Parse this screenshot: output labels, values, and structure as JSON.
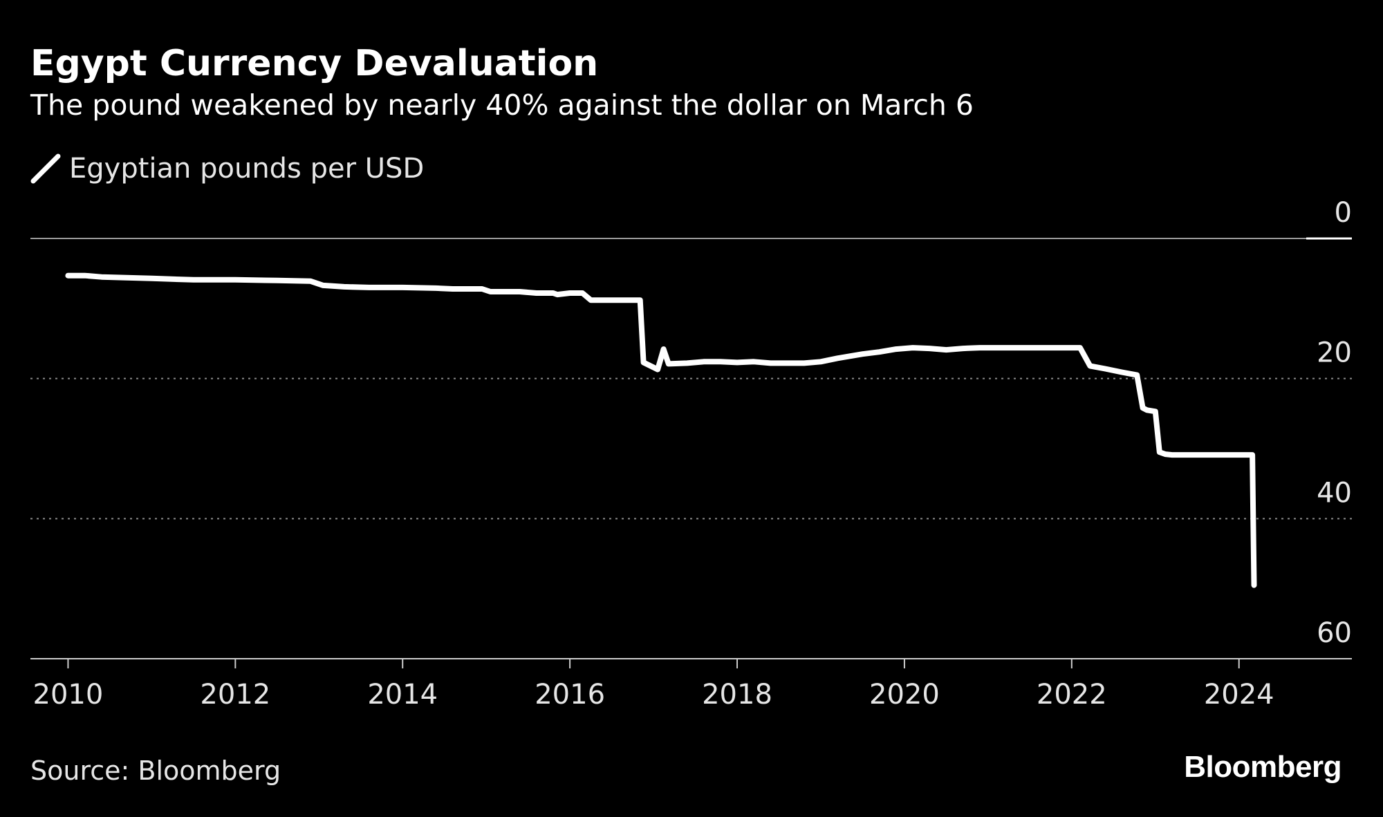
{
  "header": {
    "title": "Egypt Currency Devaluation",
    "subtitle": "The pound weakened by nearly 40% against the dollar on March 6"
  },
  "footer": {
    "source": "Source: Bloomberg",
    "brand": "Bloomberg"
  },
  "colors": {
    "background": "#000000",
    "line": "#ffffff",
    "grid": "#9a9a9a",
    "text": "#e6e6e6"
  },
  "chart_data": {
    "type": "line",
    "title": "Egypt Currency Devaluation",
    "subtitle": "The pound weakened by nearly 40% against the dollar on March 6",
    "xlabel": "",
    "ylabel": "",
    "x_ticks": [
      "2010",
      "2012",
      "2014",
      "2016",
      "2018",
      "2020",
      "2022",
      "2024"
    ],
    "y_ticks": [
      "0",
      "20",
      "40",
      "60"
    ],
    "xlim": [
      2009.55,
      2025.35
    ],
    "ylim": [
      0,
      60
    ],
    "y_axis_inverted": true,
    "y_axis_side": "right",
    "grid": "horizontal dotted at 20 and 40",
    "legend": "top-left",
    "series": [
      {
        "name": "Egyptian pounds per USD",
        "x": [
          2010.0,
          2010.2,
          2010.4,
          2011.0,
          2011.5,
          2012.0,
          2012.5,
          2012.9,
          2013.05,
          2013.3,
          2013.6,
          2014.0,
          2014.4,
          2014.6,
          2014.95,
          2015.05,
          2015.4,
          2015.6,
          2015.8,
          2015.85,
          2016.0,
          2016.15,
          2016.25,
          2016.5,
          2016.8,
          2016.84,
          2016.88,
          2017.05,
          2017.12,
          2017.18,
          2017.4,
          2017.6,
          2017.8,
          2018.0,
          2018.2,
          2018.4,
          2018.6,
          2018.8,
          2019.0,
          2019.2,
          2019.5,
          2019.7,
          2019.9,
          2020.1,
          2020.3,
          2020.5,
          2020.7,
          2020.9,
          2021.2,
          2021.5,
          2021.8,
          2022.1,
          2022.22,
          2022.4,
          2022.6,
          2022.78,
          2022.85,
          2022.9,
          2023.0,
          2023.05,
          2023.12,
          2023.2,
          2023.4,
          2023.6,
          2023.8,
          2024.0,
          2024.1,
          2024.16,
          2024.18
        ],
        "values": [
          5.3,
          5.3,
          5.5,
          5.7,
          5.9,
          5.9,
          6.0,
          6.1,
          6.7,
          6.9,
          7.0,
          7.0,
          7.1,
          7.2,
          7.2,
          7.6,
          7.6,
          7.8,
          7.8,
          8.0,
          7.8,
          7.8,
          8.8,
          8.8,
          8.8,
          8.8,
          17.7,
          18.7,
          15.8,
          17.9,
          17.8,
          17.6,
          17.6,
          17.7,
          17.6,
          17.8,
          17.8,
          17.8,
          17.6,
          17.1,
          16.5,
          16.2,
          15.8,
          15.6,
          15.7,
          15.9,
          15.7,
          15.6,
          15.6,
          15.6,
          15.6,
          15.6,
          18.2,
          18.6,
          19.1,
          19.5,
          24.2,
          24.5,
          24.7,
          30.5,
          30.8,
          30.9,
          30.9,
          30.9,
          30.9,
          30.9,
          30.9,
          30.9,
          49.5
        ]
      }
    ]
  }
}
